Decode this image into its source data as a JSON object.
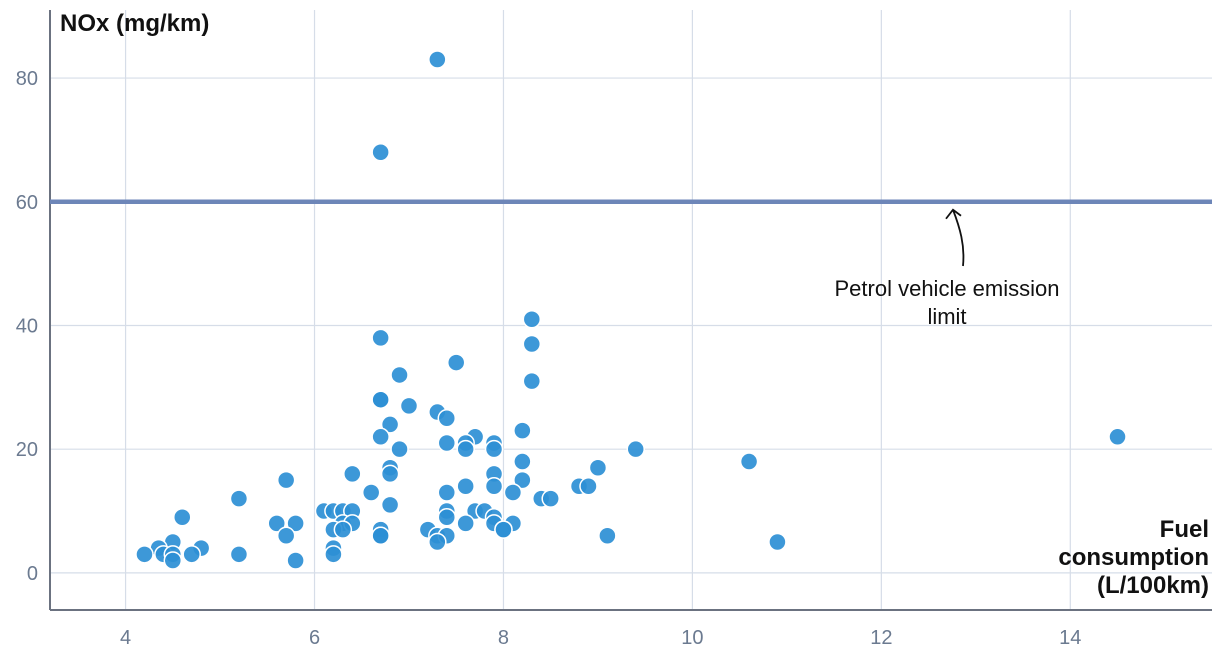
{
  "chart_data": {
    "type": "scatter",
    "ylabel": "NOx (mg/km)",
    "xlabel_lines": [
      "Fuel",
      "consumption",
      "(L/100km)"
    ],
    "xlim": [
      3.2,
      15.5
    ],
    "ylim": [
      -6,
      91
    ],
    "x_ticks": [
      4,
      6,
      8,
      10,
      12,
      14
    ],
    "y_ticks": [
      0,
      20,
      40,
      60,
      80
    ],
    "grid": true,
    "reference_line": {
      "value": 60,
      "label_lines": [
        "Petrol vehicle emission",
        "limit"
      ]
    },
    "colors": {
      "point": "#2d8fd5",
      "point_stroke": "#ffffff",
      "reference_line": "#6d86b8",
      "grid": "#d6dde8",
      "axis": "#6b7280"
    },
    "points": [
      [
        7.3,
        83
      ],
      [
        6.7,
        68
      ],
      [
        8.3,
        41
      ],
      [
        6.7,
        38
      ],
      [
        8.3,
        37
      ],
      [
        7.5,
        34
      ],
      [
        6.9,
        32
      ],
      [
        8.3,
        31
      ],
      [
        6.7,
        28
      ],
      [
        6.7,
        28
      ],
      [
        7.0,
        27
      ],
      [
        7.3,
        26
      ],
      [
        7.4,
        25
      ],
      [
        6.8,
        24
      ],
      [
        8.2,
        23
      ],
      [
        6.7,
        22
      ],
      [
        7.7,
        22
      ],
      [
        14.5,
        22
      ],
      [
        7.4,
        21
      ],
      [
        7.6,
        21
      ],
      [
        7.9,
        21
      ],
      [
        7.6,
        20
      ],
      [
        7.9,
        20
      ],
      [
        6.9,
        20
      ],
      [
        9.4,
        20
      ],
      [
        8.2,
        18
      ],
      [
        10.6,
        18
      ],
      [
        6.8,
        17
      ],
      [
        9.0,
        17
      ],
      [
        6.4,
        16
      ],
      [
        6.8,
        16
      ],
      [
        7.9,
        16
      ],
      [
        5.7,
        15
      ],
      [
        8.2,
        15
      ],
      [
        7.6,
        14
      ],
      [
        7.9,
        14
      ],
      [
        8.8,
        14
      ],
      [
        8.9,
        14
      ],
      [
        6.6,
        13
      ],
      [
        7.4,
        13
      ],
      [
        8.1,
        13
      ],
      [
        5.2,
        12
      ],
      [
        8.4,
        12
      ],
      [
        8.5,
        12
      ],
      [
        6.8,
        11
      ],
      [
        6.1,
        10
      ],
      [
        6.2,
        10
      ],
      [
        6.3,
        10
      ],
      [
        6.4,
        10
      ],
      [
        7.4,
        10
      ],
      [
        7.7,
        10
      ],
      [
        7.8,
        10
      ],
      [
        4.6,
        9
      ],
      [
        7.4,
        9
      ],
      [
        7.9,
        9
      ],
      [
        5.6,
        8
      ],
      [
        5.8,
        8
      ],
      [
        6.3,
        8
      ],
      [
        6.4,
        8
      ],
      [
        7.6,
        8
      ],
      [
        7.9,
        8
      ],
      [
        8.1,
        8
      ],
      [
        6.2,
        7
      ],
      [
        6.3,
        7
      ],
      [
        6.7,
        7
      ],
      [
        7.2,
        7
      ],
      [
        8.0,
        7
      ],
      [
        8.0,
        7
      ],
      [
        5.7,
        6
      ],
      [
        6.7,
        6
      ],
      [
        6.7,
        6
      ],
      [
        7.3,
        6
      ],
      [
        7.4,
        6
      ],
      [
        9.1,
        6
      ],
      [
        4.5,
        5
      ],
      [
        7.3,
        5
      ],
      [
        10.9,
        5
      ],
      [
        4.35,
        4
      ],
      [
        4.8,
        4
      ],
      [
        6.2,
        4
      ],
      [
        4.2,
        3
      ],
      [
        4.4,
        3
      ],
      [
        4.5,
        3
      ],
      [
        4.7,
        3
      ],
      [
        5.2,
        3
      ],
      [
        6.2,
        3
      ],
      [
        4.5,
        2
      ],
      [
        5.8,
        2
      ]
    ]
  }
}
